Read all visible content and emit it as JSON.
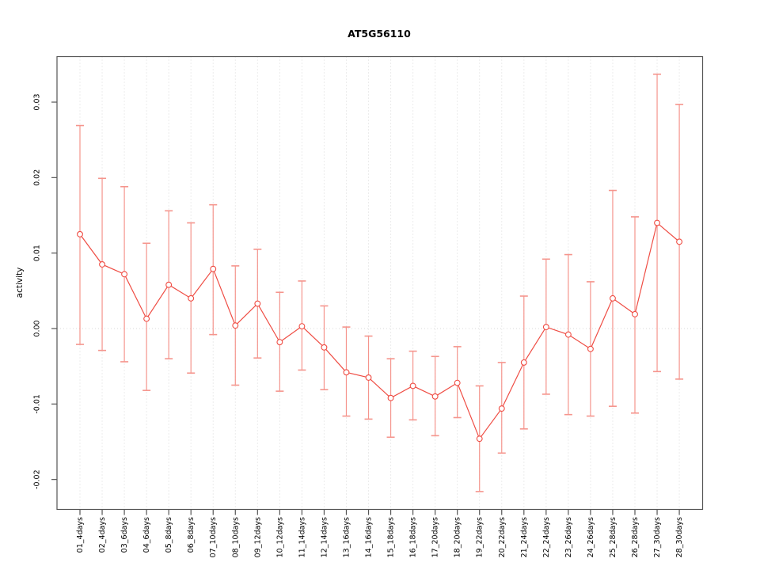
{
  "chart_data": {
    "type": "line",
    "subtype": "points-with-error-bars",
    "title": "AT5G56110",
    "xlabel": "",
    "ylabel": "activity",
    "categories": [
      "01_4days",
      "02_4days",
      "03_6days",
      "04_6days",
      "05_8days",
      "06_8days",
      "07_10days",
      "08_10days",
      "09_12days",
      "10_12days",
      "11_14days",
      "12_14days",
      "13_16days",
      "14_16days",
      "15_18days",
      "16_18days",
      "17_20days",
      "18_20days",
      "19_22days",
      "20_22days",
      "21_24days",
      "22_24days",
      "23_26days",
      "24_26days",
      "25_28days",
      "26_28days",
      "27_30days",
      "28_30days"
    ],
    "series": [
      {
        "name": "activity",
        "values": [
          0.0125,
          0.0085,
          0.0072,
          0.0013,
          0.0058,
          0.004,
          0.0079,
          0.0004,
          0.0033,
          -0.0018,
          0.0003,
          -0.0025,
          -0.0058,
          -0.0065,
          -0.0092,
          -0.0076,
          -0.009,
          -0.0072,
          -0.0146,
          -0.0106,
          -0.0045,
          0.0002,
          -0.0008,
          -0.0027,
          0.004,
          0.0019,
          0.014,
          0.0115
        ],
        "upper": [
          0.0269,
          0.0199,
          0.0188,
          0.0113,
          0.0156,
          0.014,
          0.0164,
          0.0083,
          0.0105,
          0.0048,
          0.0063,
          0.003,
          0.0002,
          -0.001,
          -0.004,
          -0.003,
          -0.0037,
          -0.0024,
          -0.0076,
          -0.0045,
          0.0043,
          0.0092,
          0.0098,
          0.0062,
          0.0183,
          0.0148,
          0.0337,
          0.0297
        ],
        "lower": [
          -0.0021,
          -0.0029,
          -0.0044,
          -0.0082,
          -0.004,
          -0.0059,
          -0.0008,
          -0.0075,
          -0.0039,
          -0.0083,
          -0.0055,
          -0.0081,
          -0.0116,
          -0.012,
          -0.0144,
          -0.0121,
          -0.0142,
          -0.0118,
          -0.0216,
          -0.0165,
          -0.0133,
          -0.0087,
          -0.0114,
          -0.0116,
          -0.0103,
          -0.0112,
          -0.0057,
          -0.0067
        ]
      }
    ],
    "yticks": [
      -0.02,
      -0.01,
      0.0,
      0.01,
      0.02,
      0.03
    ],
    "ytick_labels": [
      "-0.02",
      "-0.01",
      "0.00",
      "0.01",
      "0.02",
      "0.03"
    ],
    "ylim": [
      -0.024,
      0.036
    ],
    "grid": "vertical-dotted-per-category-plus-zero-line",
    "legend": "none",
    "marker": "open-circle",
    "colors": {
      "point_line": "#ef4d44",
      "error_bar": "#f5958d",
      "grid": "#d9d9d9",
      "box": "#555555",
      "zero_line": "#d9d9d9",
      "background": "#ffffff"
    }
  }
}
